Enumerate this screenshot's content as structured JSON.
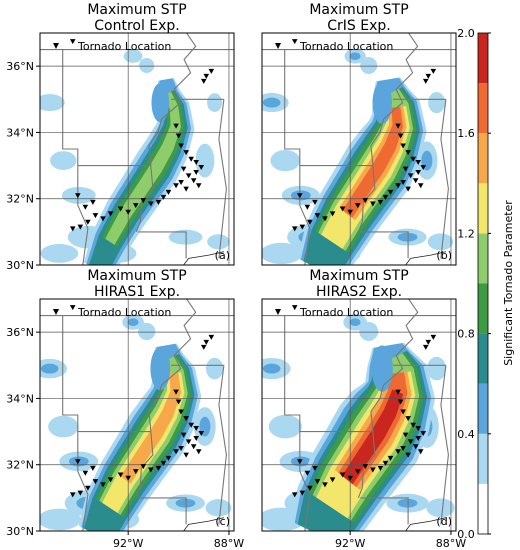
{
  "chart_data": {
    "type": "heatmap",
    "colorbar": {
      "label": "Significant Tornado Parameter",
      "ticks": [
        "0.0",
        "0.4",
        "0.8",
        "1.2",
        "1.6",
        "2.0"
      ],
      "range": [
        0.0,
        2.0
      ],
      "levels": [
        {
          "from": 0.0,
          "to": 0.2,
          "color": "#ffffff"
        },
        {
          "from": 0.2,
          "to": 0.4,
          "color": "#a9d8f0"
        },
        {
          "from": 0.4,
          "to": 0.6,
          "color": "#5aa6dc"
        },
        {
          "from": 0.6,
          "to": 0.8,
          "color": "#2b8c8e"
        },
        {
          "from": 0.8,
          "to": 1.0,
          "color": "#3c9b43"
        },
        {
          "from": 1.0,
          "to": 1.2,
          "color": "#8fcc6b"
        },
        {
          "from": 1.2,
          "to": 1.4,
          "color": "#f2e76a"
        },
        {
          "from": 1.4,
          "to": 1.6,
          "color": "#f6a84a"
        },
        {
          "from": 1.6,
          "to": 1.8,
          "color": "#ee6a32"
        },
        {
          "from": 1.8,
          "to": 2.0,
          "color": "#c8261f"
        }
      ]
    },
    "axes": {
      "lat_ticks": [
        "30°N",
        "32°N",
        "34°N",
        "36°N"
      ],
      "lon_ticks": [
        "92°W",
        "88°W"
      ],
      "lat_range": [
        30.0,
        37.0
      ],
      "lon_range": [
        -95.5,
        -87.8
      ]
    },
    "legend_label": "Tornado Location",
    "panels": [
      {
        "title": [
          "Maximum STP",
          "Control Exp."
        ],
        "label": "(a)",
        "intensity": 0.6,
        "peak_stp": 0.9
      },
      {
        "title": [
          "Maximum STP",
          "CrIS Exp."
        ],
        "label": "(b)",
        "intensity": 0.9,
        "peak_stp": 1.5
      },
      {
        "title": [
          "Maximum STP",
          "HIRAS1 Exp."
        ],
        "label": "(c)",
        "intensity": 0.95,
        "peak_stp": 1.4
      },
      {
        "title": [
          "Maximum STP",
          "HIRAS2 Exp."
        ],
        "label": "(d)",
        "intensity": 1.2,
        "peak_stp": 2.0
      }
    ],
    "tornado_locations": [
      [
        -94.2,
        36.75
      ],
      [
        -88.7,
        35.85
      ],
      [
        -88.9,
        35.7
      ],
      [
        -89.0,
        35.55
      ],
      [
        -90.1,
        34.2
      ],
      [
        -90.0,
        33.9
      ],
      [
        -89.9,
        33.6
      ],
      [
        -89.7,
        33.4
      ],
      [
        -89.5,
        33.2
      ],
      [
        -89.3,
        33.1
      ],
      [
        -89.1,
        32.95
      ],
      [
        -89.3,
        32.8
      ],
      [
        -89.6,
        32.7
      ],
      [
        -89.8,
        32.9
      ],
      [
        -89.9,
        32.5
      ],
      [
        -90.1,
        32.4
      ],
      [
        -89.7,
        32.3
      ],
      [
        -89.4,
        32.55
      ],
      [
        -89.2,
        32.4
      ],
      [
        -90.4,
        32.2
      ],
      [
        -90.6,
        32.05
      ],
      [
        -90.8,
        31.9
      ],
      [
        -91.1,
        31.85
      ],
      [
        -91.4,
        31.95
      ],
      [
        -91.7,
        31.8
      ],
      [
        -92.0,
        31.6
      ],
      [
        -92.3,
        31.7
      ],
      [
        -92.7,
        31.55
      ],
      [
        -93.0,
        31.4
      ],
      [
        -93.3,
        31.5
      ],
      [
        -93.6,
        31.3
      ],
      [
        -93.9,
        31.15
      ],
      [
        -94.2,
        31.1
      ],
      [
        -94.0,
        32.1
      ],
      [
        -93.4,
        31.9
      ],
      [
        -93.7,
        31.75
      ]
    ]
  }
}
